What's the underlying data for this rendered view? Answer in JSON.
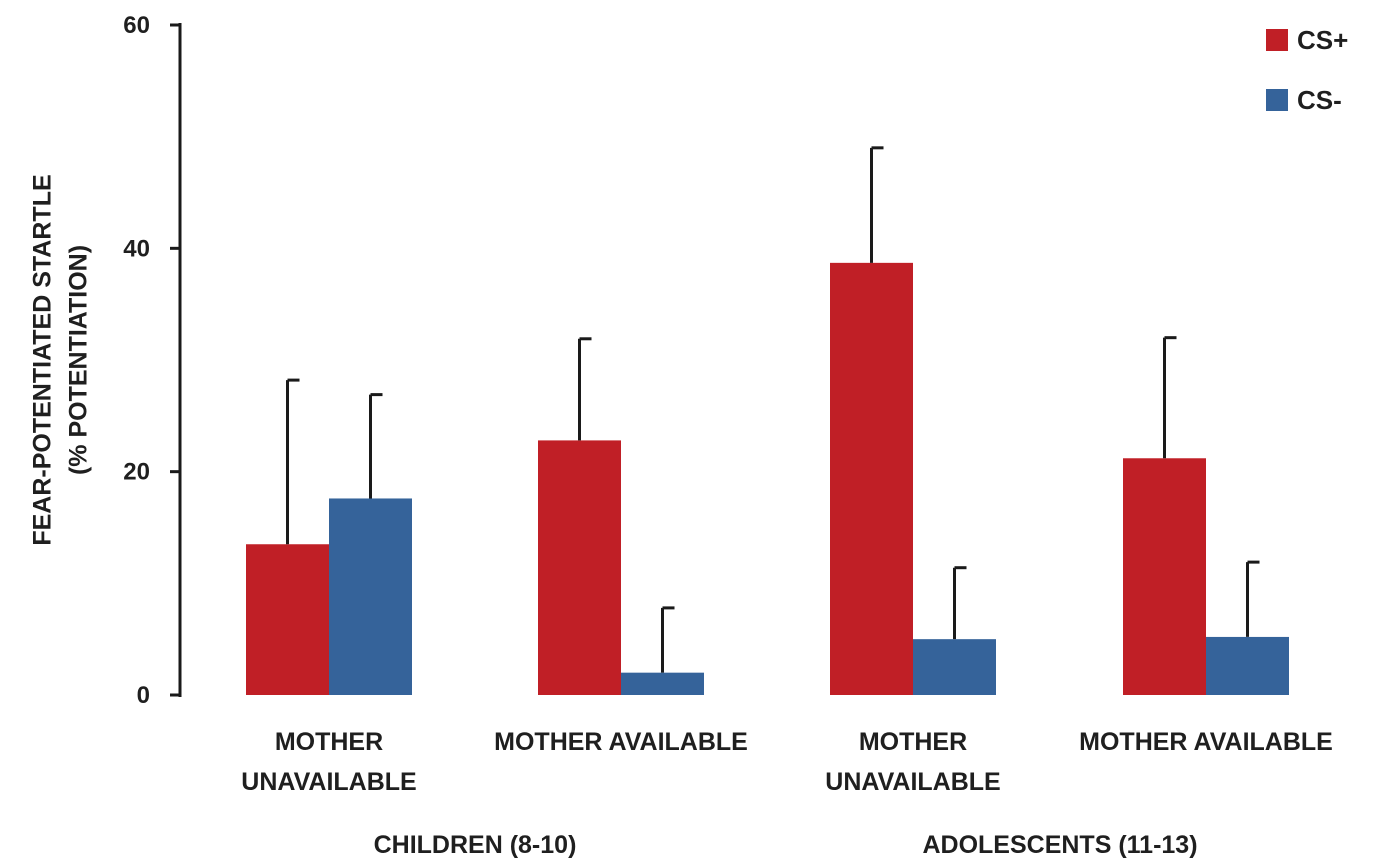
{
  "chart_data": {
    "type": "bar",
    "ylabel_lines": [
      "FEAR-POTENTIATED STARTLE",
      "(% POTENTIATION)"
    ],
    "ylim": [
      0,
      60
    ],
    "yticks": [
      0,
      20,
      40,
      60
    ],
    "categories": [
      {
        "label_lines": [
          "MOTHER",
          "UNAVAILABLE"
        ],
        "group": "CHILDREN (8-10)"
      },
      {
        "label_lines": [
          "MOTHER AVAILABLE"
        ],
        "group": "CHILDREN (8-10)"
      },
      {
        "label_lines": [
          "MOTHER",
          "UNAVAILABLE"
        ],
        "group": "ADOLESCENTS (11-13)"
      },
      {
        "label_lines": [
          "MOTHER AVAILABLE"
        ],
        "group": "ADOLESCENTS (11-13)"
      }
    ],
    "groups": [
      "CHILDREN (8-10)",
      "ADOLESCENTS (11-13)"
    ],
    "series": [
      {
        "name": "CS+",
        "color": "#c01f26",
        "values": [
          13.5,
          22.8,
          38.7,
          21.2
        ],
        "error_upper": [
          28.2,
          31.9,
          49.0,
          32.0
        ]
      },
      {
        "name": "CS-",
        "color": "#35639a",
        "values": [
          17.6,
          2.0,
          5.0,
          5.2
        ],
        "error_upper": [
          26.9,
          7.8,
          11.4,
          11.9
        ]
      }
    ],
    "legend_position": "top-right",
    "grid": false
  }
}
